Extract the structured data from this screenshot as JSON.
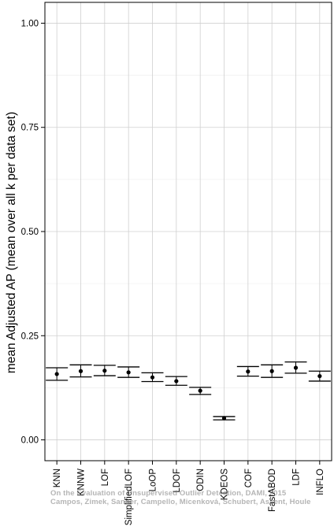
{
  "chart_data": {
    "type": "scatter",
    "subtype": "point-with-errorbars",
    "ylabel": "mean Adjusted AP (mean over all k per data set)",
    "xlabel": "",
    "ylim": [
      -0.05,
      1.05
    ],
    "y_ticks": [
      0.0,
      0.25,
      0.5,
      0.75,
      1.0
    ],
    "y_tick_labels": [
      "0.00",
      "0.25",
      "0.50",
      "0.75",
      "1.00"
    ],
    "grid": true,
    "categories": [
      "KNN",
      "KNNW",
      "LOF",
      "SimplifiedLOF",
      "LoOP",
      "LDOF",
      "ODIN",
      "KDEOS",
      "COF",
      "FastABOD",
      "LDF",
      "INFLO"
    ],
    "series": [
      {
        "mean": [
          0.158,
          0.165,
          0.166,
          0.162,
          0.15,
          0.141,
          0.118,
          0.052,
          0.164,
          0.165,
          0.173,
          0.153
        ],
        "lower": [
          0.143,
          0.151,
          0.154,
          0.15,
          0.14,
          0.131,
          0.109,
          0.048,
          0.153,
          0.15,
          0.16,
          0.141
        ],
        "upper": [
          0.173,
          0.18,
          0.179,
          0.175,
          0.161,
          0.152,
          0.126,
          0.056,
          0.176,
          0.18,
          0.187,
          0.165
        ]
      }
    ],
    "colors": {
      "point": "#000000",
      "grid": "#d6d6d6",
      "axis": "#000000"
    }
  },
  "watermark": {
    "line1": "On the Evaluation of Unsupervised Outlier Detection, DAMI, 2015",
    "line2": "Campos, Zimek, Sander, Campello, Micenková, Schubert, Assent, Houle"
  }
}
